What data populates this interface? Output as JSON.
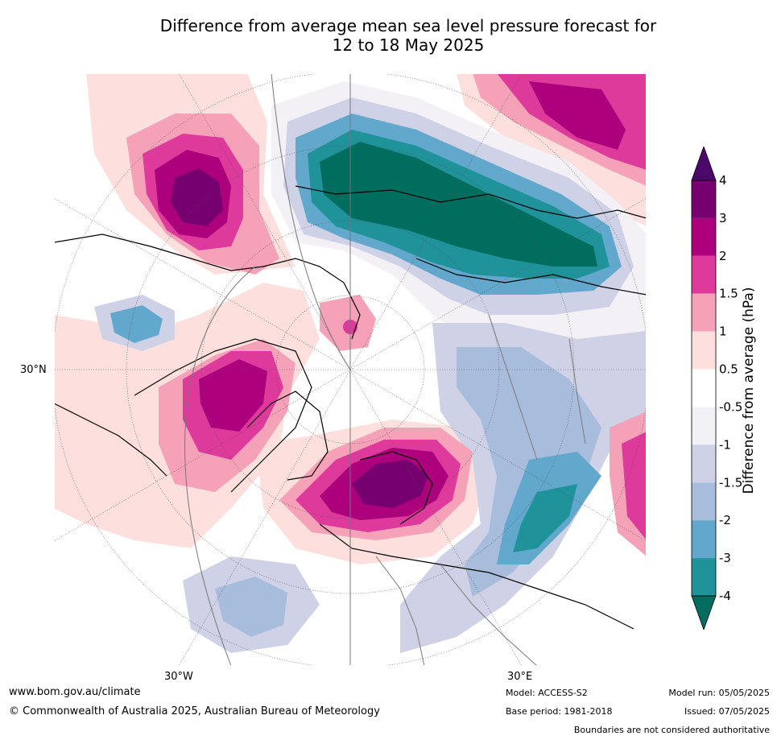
{
  "title_line1": "Difference from average mean sea level pressure forecast for",
  "title_line2": "12 to 18 May 2025",
  "axis_labels": {
    "lat": "30°N",
    "lon_w": "30°W",
    "lon_e": "30°E"
  },
  "colorbar": {
    "title": "Difference from average (hPa)",
    "tick_labels": [
      "4",
      "3",
      "2",
      "1.5",
      "1",
      "0.5",
      "-0.5",
      "-1",
      "-1.5",
      "-2",
      "-3",
      "-4"
    ],
    "colors": [
      "#4b0a6b",
      "#76006f",
      "#ad007d",
      "#de3a9c",
      "#f5a2b9",
      "#fde0de",
      "#ffffff",
      "#f3f0f6",
      "#cfd2e6",
      "#a8bcdc",
      "#62a7cc",
      "#1f929a",
      "#006d5e"
    ]
  },
  "footer": {
    "website": "www.bom.gov.au/climate",
    "copyright": "© Commonwealth of Australia 2025, Australian Bureau of Meteorology",
    "model": "Model: ACCESS-S2",
    "base_period": "Base period: 1981-2018",
    "model_run": "Model run: 05/05/2025",
    "issued": "Issued: 07/05/2025",
    "disclaimer": "Boundaries are not considered authoritative"
  }
}
